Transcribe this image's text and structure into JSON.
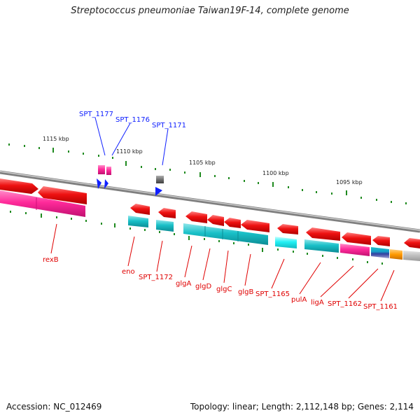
{
  "title": "Streptococcus pneumoniae Taiwan19F-14, complete genome",
  "footer": {
    "accession": "Accession: NC_012469",
    "topology": "Topology: linear; Length: 2,112,148 bp; Genes: 2,114"
  },
  "ruler_labels": [
    "1115 kbp",
    "1110 kbp",
    "1105 kbp",
    "1100 kbp",
    "1095 kbp"
  ],
  "blue_labels": [
    "SPT_1177",
    "SPT_1176",
    "SPT_1171"
  ],
  "red_labels": [
    "rexB",
    "eno",
    "SPT_1172",
    "glgA",
    "glgD",
    "glgC",
    "glgB",
    "SPT_1165",
    "pulA",
    "ligA",
    "SPT_1162",
    "SPT_1161"
  ],
  "colors": {
    "red_gene": "#ee1111",
    "pink_gene": "#ff2a9a",
    "cyan_gene": "#19c0c8",
    "bright_cyan_gene": "#22f0f4",
    "blue_gene": "#1020ff",
    "orange_gene": "#ff9a00",
    "tick_green": "#1f8a1f",
    "backbone": "#8c8c8c"
  }
}
